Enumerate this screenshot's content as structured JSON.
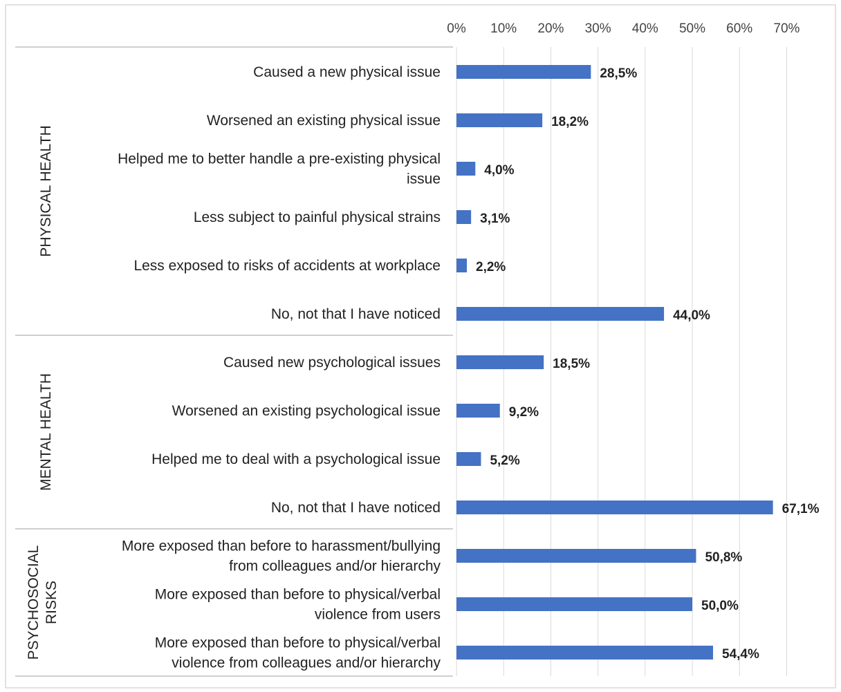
{
  "chart_data": {
    "type": "bar",
    "orientation": "horizontal",
    "xlim": [
      0,
      70
    ],
    "x_ticks": [
      "0%",
      "10%",
      "20%",
      "30%",
      "40%",
      "50%",
      "60%",
      "70%"
    ],
    "grid": true,
    "bar_color": "#4472C4",
    "groups": [
      {
        "label": "PHYSICAL HEALTH",
        "categories": [
          {
            "label_lines": [
              "Caused a new physical issue"
            ],
            "value": 28.5,
            "value_label": "28,5%"
          },
          {
            "label_lines": [
              "Worsened an existing physical issue"
            ],
            "value": 18.2,
            "value_label": "18,2%"
          },
          {
            "label_lines": [
              "Helped me to better handle a pre-existing physical",
              "issue"
            ],
            "value": 4.0,
            "value_label": "4,0%"
          },
          {
            "label_lines": [
              "Less subject to painful physical strains"
            ],
            "value": 3.1,
            "value_label": "3,1%"
          },
          {
            "label_lines": [
              "Less exposed to risks of accidents at workplace"
            ],
            "value": 2.2,
            "value_label": "2,2%"
          },
          {
            "label_lines": [
              "No, not that I have noticed"
            ],
            "value": 44.0,
            "value_label": "44,0%"
          }
        ]
      },
      {
        "label": "MENTAL HEALTH",
        "categories": [
          {
            "label_lines": [
              "Caused new psychological issues"
            ],
            "value": 18.5,
            "value_label": "18,5%"
          },
          {
            "label_lines": [
              "Worsened an existing psychological issue"
            ],
            "value": 9.2,
            "value_label": "9,2%"
          },
          {
            "label_lines": [
              "Helped me to deal with a psychological issue"
            ],
            "value": 5.2,
            "value_label": "5,2%"
          },
          {
            "label_lines": [
              "No, not that I have noticed"
            ],
            "value": 67.1,
            "value_label": "67,1%"
          }
        ]
      },
      {
        "label_lines": [
          "PSYCHOSOCIAL",
          "RISKS"
        ],
        "categories": [
          {
            "label_lines": [
              "More exposed than before to harassment/bullying",
              "from colleagues and/or hierarchy"
            ],
            "value": 50.8,
            "value_label": "50,8%"
          },
          {
            "label_lines": [
              "More exposed than before to physical/verbal",
              "violence from users"
            ],
            "value": 50.0,
            "value_label": "50,0%"
          },
          {
            "label_lines": [
              "More exposed than before to physical/verbal",
              "violence from colleagues and/or hierarchy"
            ],
            "value": 54.4,
            "value_label": "54,4%"
          }
        ]
      }
    ]
  }
}
